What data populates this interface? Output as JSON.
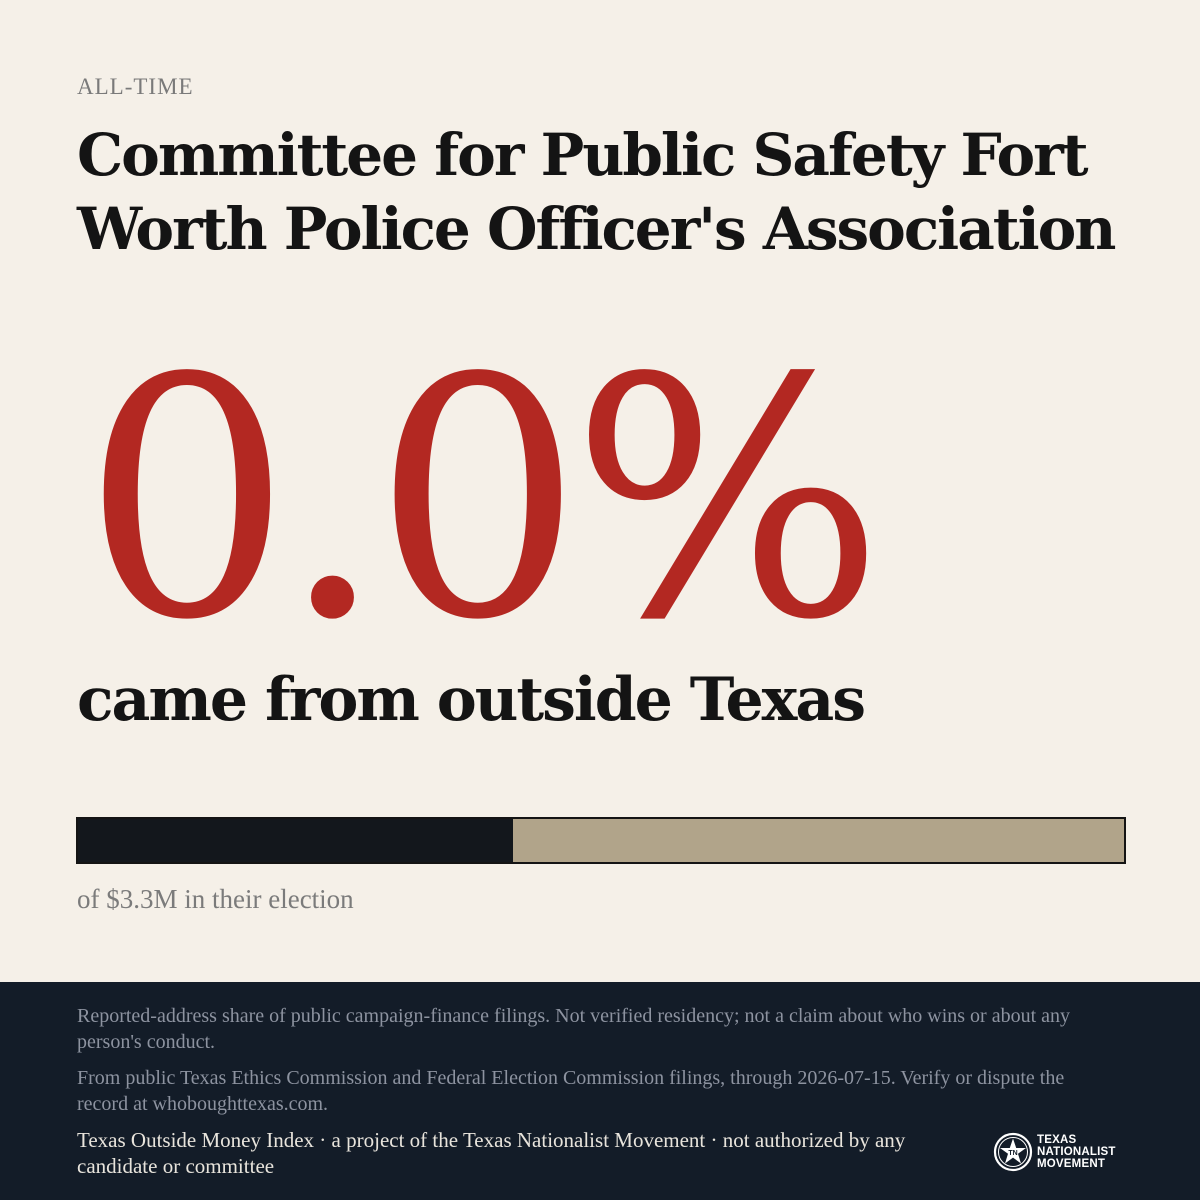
{
  "header": {
    "kicker": "ALL-TIME",
    "title": "Committee for Public Safety Fort Worth Police Officer's Association"
  },
  "stat": {
    "value": "0.0%",
    "caption": "came from outside Texas"
  },
  "bar": {
    "filled_fraction": 0.416,
    "caption": "of $3.3M in their election",
    "colors": {
      "fill": "#13171c",
      "remainder": "#b1a48a",
      "accent": "#b32822"
    }
  },
  "footer": {
    "note1": "Reported-address share of public campaign-finance filings. Not verified residency; not a claim about who wins or about any person's conduct.",
    "note2": "From public Texas Ethics Commission and Federal Election Commission filings, through 2026-07-15. Verify or dispute the record at whoboughttexas.com.",
    "credit": "Texas Outside Money Index · a project of the Texas Nationalist Movement · not authorized by any candidate or committee",
    "logo": {
      "icon": "star-seal-icon",
      "line1": "TEXAS",
      "line2": "NATIONALIST",
      "line3": "MOVEMENT"
    }
  }
}
